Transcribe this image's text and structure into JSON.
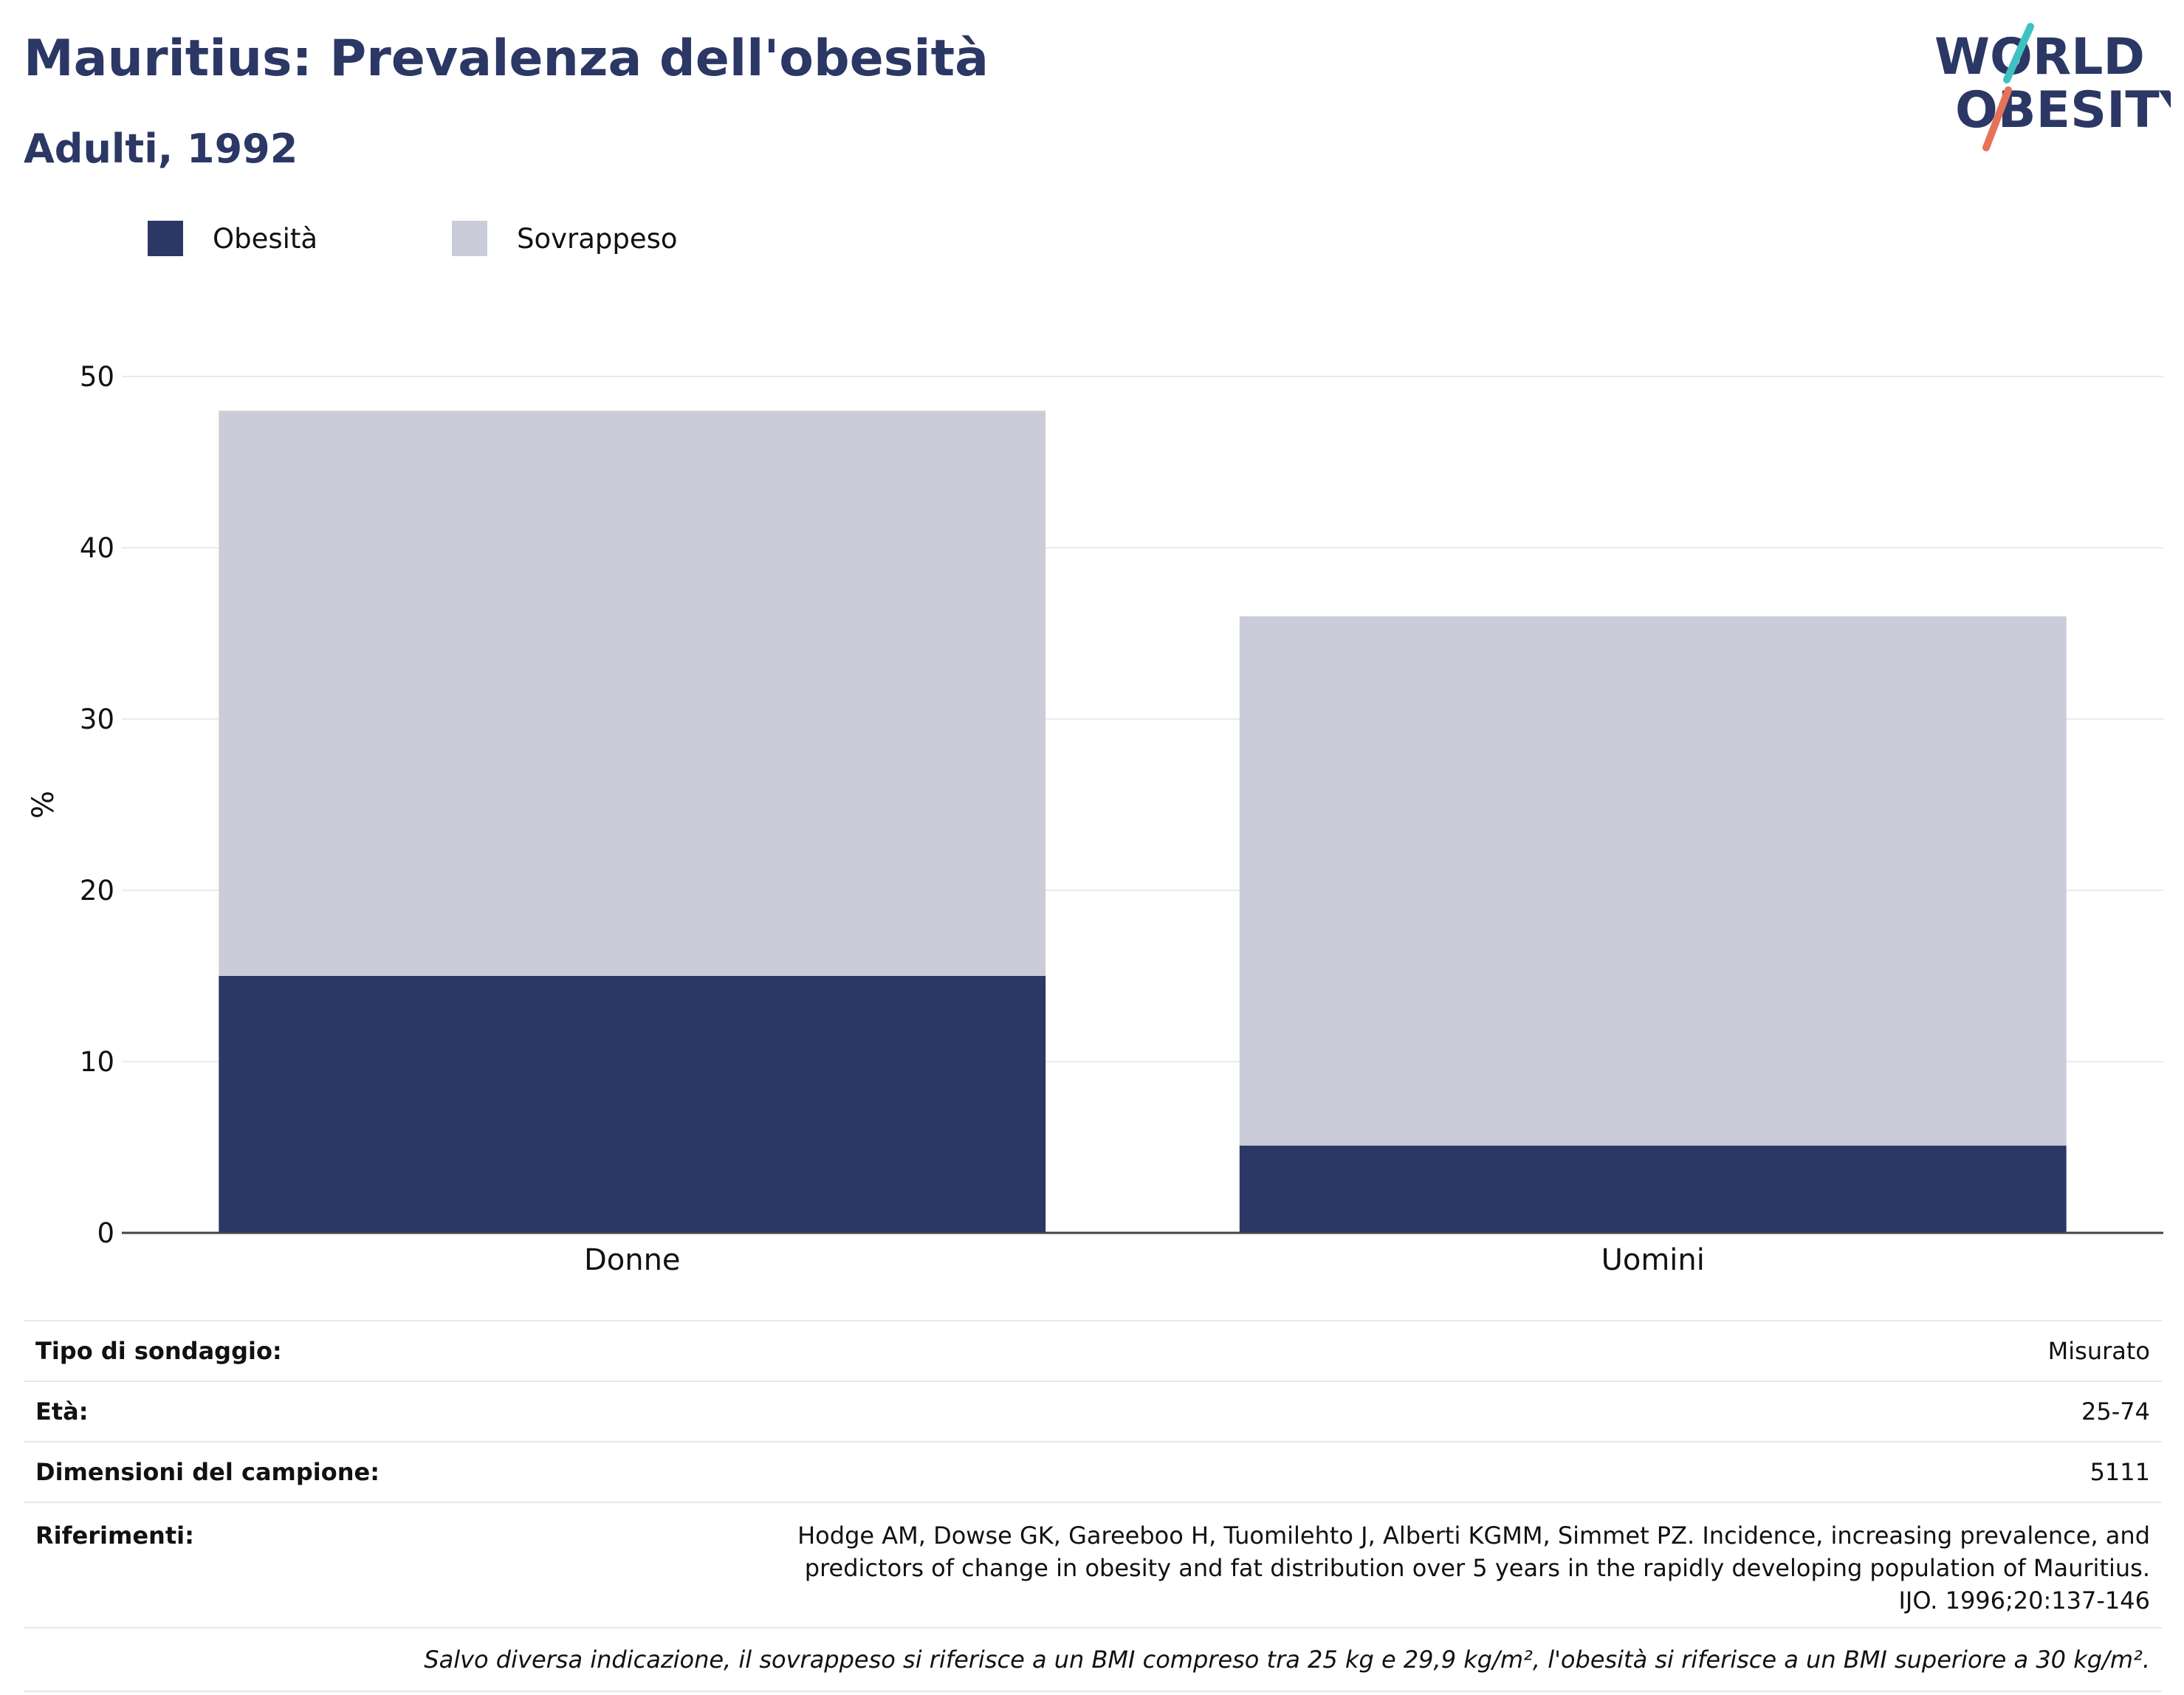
{
  "header": {
    "title": "Mauritius: Prevalenza dell'obesità",
    "subtitle": "Adulti, 1992",
    "logo_line1": "WORLD",
    "logo_line2": "OBESITY"
  },
  "colors": {
    "obesity": "#2b3764",
    "overweight": "#cacdd9",
    "title": "#2b3764",
    "logo_teal": "#3ec1c1",
    "logo_coral": "#e5735a"
  },
  "legend": [
    {
      "label": "Obesità",
      "color": "#2b3764"
    },
    {
      "label": "Sovrappeso",
      "color": "#cacdd9"
    }
  ],
  "chart_data": {
    "type": "bar",
    "stacked": true,
    "categories": [
      "Donne",
      "Uomini"
    ],
    "series": [
      {
        "name": "Obesità",
        "values": [
          15,
          5.1
        ]
      },
      {
        "name": "Sovrappeso",
        "values": [
          33,
          30.9
        ]
      }
    ],
    "ylabel": "%",
    "ylim": [
      0,
      50
    ],
    "yticks": [
      0,
      10,
      20,
      30,
      40,
      50
    ],
    "grid": true,
    "legend_position": "top-left"
  },
  "info": {
    "rows": [
      {
        "label": "Tipo di sondaggio:",
        "value": "Misurato"
      },
      {
        "label": "Età:",
        "value": "25-74"
      },
      {
        "label": "Dimensioni del campione:",
        "value": "5111"
      }
    ],
    "reference_label": "Riferimenti:",
    "reference_text": "Hodge AM, Dowse GK, Gareeboo H, Tuomilehto J, Alberti KGMM, Simmet PZ. Incidence, increasing prevalence, and predictors of change in obesity and fat distribution over 5 years in the rapidly developing population of Mauritius. IJO. 1996;20:137-146",
    "note": "Salvo diversa indicazione, il sovrappeso si riferisce a un BMI compreso tra 25 kg e 29,9 kg/m², l'obesità si riferisce a un BMI superiore a 30 kg/m²."
  }
}
